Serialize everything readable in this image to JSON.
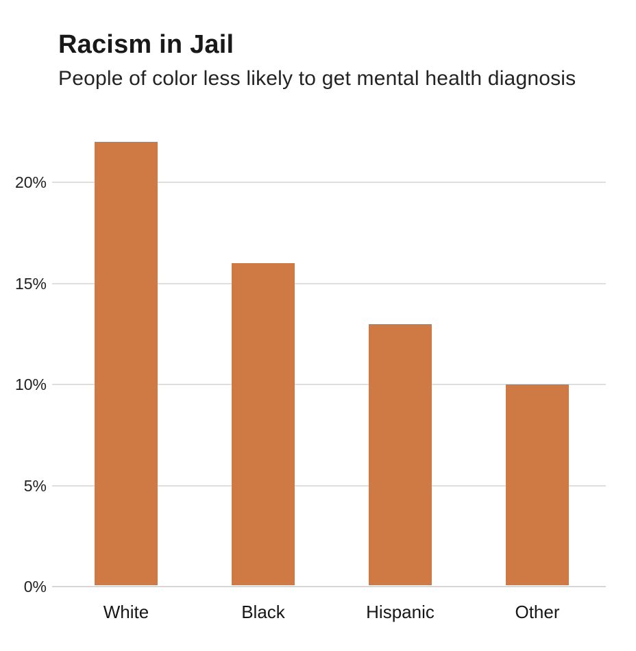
{
  "chart_data": {
    "type": "bar",
    "title": "Racism in Jail",
    "subtitle": "People of color less likely to get mental health diagnosis",
    "categories": [
      "White",
      "Black",
      "Hispanic",
      "Other"
    ],
    "values": [
      22,
      16,
      13,
      10
    ],
    "unit": "%",
    "xlabel": "",
    "ylabel": "",
    "ylim": [
      0,
      23.3
    ],
    "yticks": [
      {
        "value": 0,
        "label": "0%"
      },
      {
        "value": 5,
        "label": "5%"
      },
      {
        "value": 10,
        "label": "10%"
      },
      {
        "value": 15,
        "label": "15%"
      },
      {
        "value": 20,
        "label": "20%"
      }
    ],
    "grid": true,
    "legend_position": "none",
    "bar_color": "#cf7a44",
    "grid_color": "#e0dedb",
    "background_color": "#ffffff",
    "title_color": "#191919",
    "text_color": "#1f1f1f"
  }
}
